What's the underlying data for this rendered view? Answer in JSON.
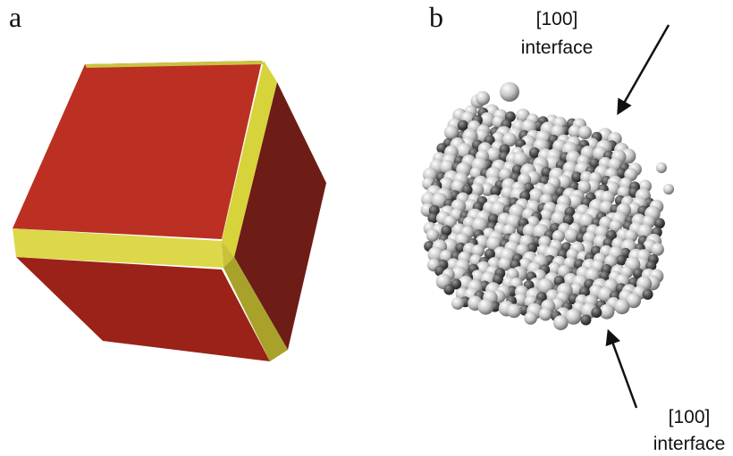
{
  "panels": [
    {
      "label": "a"
    },
    {
      "label": "b",
      "annotations": [
        {
          "lines": [
            "[100]",
            "interface"
          ]
        },
        {
          "lines": [
            "[100]",
            "interface"
          ]
        }
      ]
    }
  ]
}
